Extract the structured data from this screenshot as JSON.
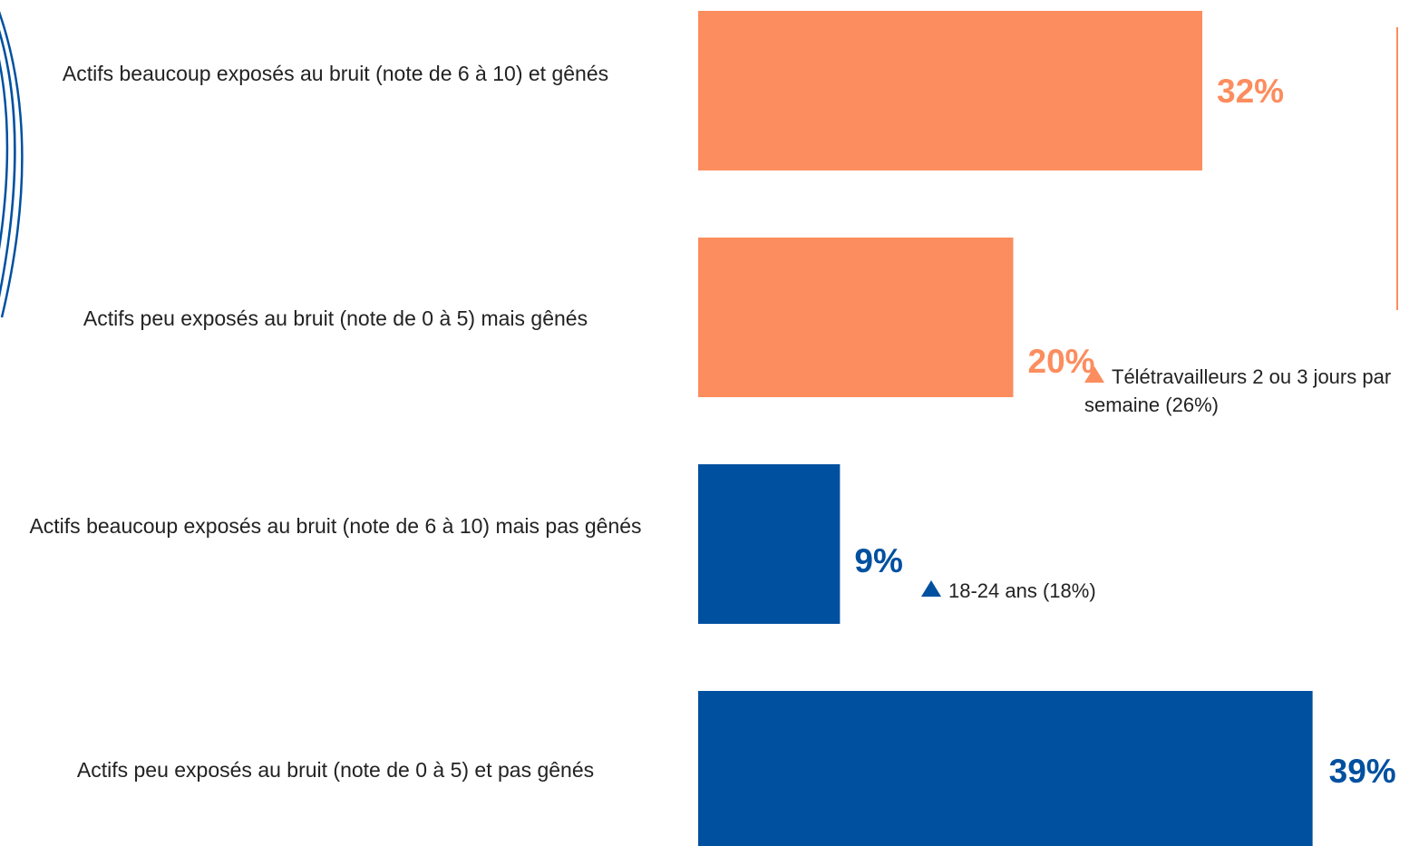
{
  "chart_data": {
    "type": "bar",
    "orientation": "horizontal",
    "categories": [
      "Actifs beaucoup exposés au bruit (note de 6 à 10) et gênés",
      "Actifs peu exposés au bruit (note de 0 à 5) mais gênés",
      "Actifs beaucoup exposés au bruit (note de 6 à 10) mais pas gênés",
      "Actifs peu exposés au bruit (note de 0 à 5) et pas gênés"
    ],
    "values": [
      32,
      20,
      9,
      39
    ],
    "value_labels": [
      "32%",
      "20%",
      "9%",
      "39%"
    ],
    "unit": "%",
    "colors": [
      "#fc8d5e",
      "#fc8d5e",
      "#0050a0",
      "#0050a0"
    ],
    "xlim": [
      0,
      41
    ],
    "grid": false,
    "annotations": [
      {
        "category_index": 1,
        "text": "Télétravailleurs 2 ou 3 jours par semaine (26%)",
        "marker": "up-triangle",
        "color": "#fc8d5e"
      },
      {
        "category_index": 2,
        "text": "18-24 ans (18%)",
        "marker": "up-triangle",
        "color": "#0050a0"
      }
    ]
  }
}
